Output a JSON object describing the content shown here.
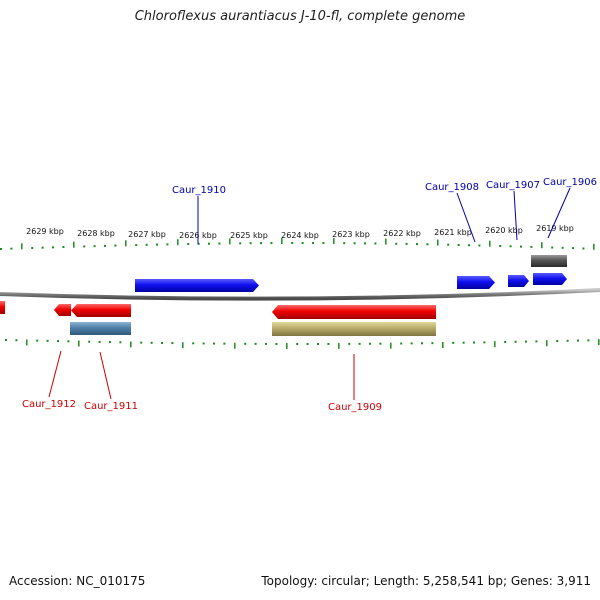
{
  "title": "Chloroflexus aurantiacus J-10-fl, complete genome",
  "footer": {
    "accession": "Accession: NC_010175",
    "summary": "Topology: circular; Length: 5,258,541 bp; Genes: 3,911"
  },
  "scale_ticks": [
    "2629 kbp",
    "2628 kbp",
    "2627 kbp",
    "2626 kbp",
    "2625 kbp",
    "2624 kbp",
    "2623 kbp",
    "2622 kbp",
    "2621 kbp",
    "2620 kbp",
    "2619 kbp"
  ],
  "gene_labels": [
    "Caur_1910",
    "Caur_1908",
    "Caur_1907",
    "Caur_1906",
    "Caur_1912",
    "Caur_1911",
    "Caur_1909"
  ],
  "colors": {
    "forward_gene": "#0000ee",
    "reverse_gene": "#ee0000",
    "forward_label": "#0000aa",
    "reverse_label": "#cc0000",
    "steel_feature": "#4f7fa8",
    "olive_feature": "#b7ab6a",
    "gray_feature": "#555555",
    "tick": "#1f8a1f",
    "backbone": "#808080"
  }
}
